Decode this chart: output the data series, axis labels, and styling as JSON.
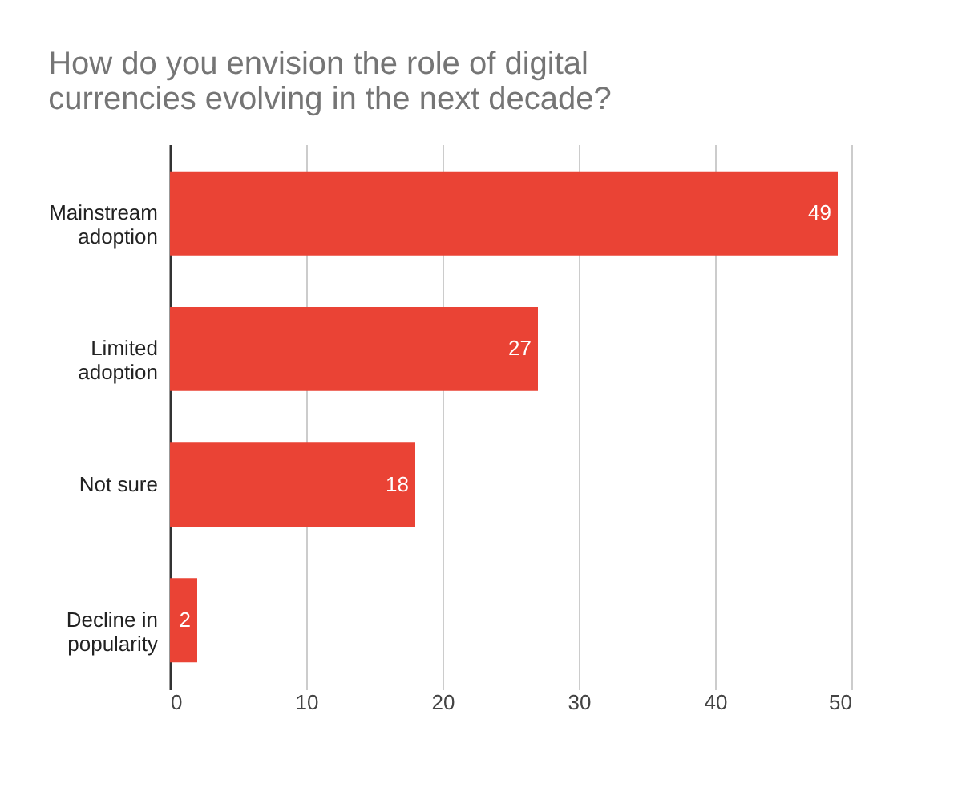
{
  "chart_data": {
    "type": "bar",
    "orientation": "horizontal",
    "title": "How do you envision the role of digital currencies evolving in the next decade?",
    "categories": [
      "Mainstream adoption",
      "Limited adoption",
      "Not sure",
      "Decline in popularity"
    ],
    "values": [
      49,
      27,
      18,
      2
    ],
    "color": "#ea4335",
    "xlim": [
      0,
      50
    ],
    "xticks": [
      0,
      10,
      20,
      30,
      40,
      50
    ],
    "grid": "x",
    "data_labels": true
  }
}
